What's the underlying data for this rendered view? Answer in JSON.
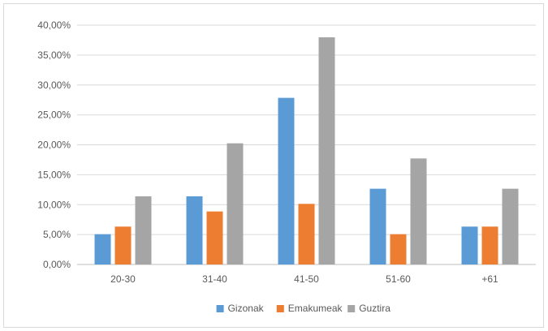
{
  "chart_data": {
    "type": "bar",
    "categories": [
      "20-30",
      "31-40",
      "41-50",
      "51-60",
      "+61"
    ],
    "series": [
      {
        "name": "Gizonak",
        "color": "#5b9bd5",
        "values": [
          5.06,
          11.39,
          27.85,
          12.66,
          6.33
        ]
      },
      {
        "name": "Emakumeak",
        "color": "#ed7d31",
        "values": [
          6.33,
          8.86,
          10.13,
          5.06,
          6.33
        ]
      },
      {
        "name": "Guztira",
        "color": "#a5a5a5",
        "values": [
          11.39,
          20.25,
          37.97,
          17.72,
          12.66
        ]
      }
    ],
    "ylim": [
      0,
      40
    ],
    "yticks": [
      0,
      5,
      10,
      15,
      20,
      25,
      30,
      35,
      40
    ],
    "ytick_labels": [
      "0,00%",
      "5,00%",
      "10,00%",
      "15,00%",
      "20,00%",
      "25,00%",
      "30,00%",
      "35,00%",
      "40,00%"
    ],
    "grid": true,
    "legend_position": "bottom"
  }
}
